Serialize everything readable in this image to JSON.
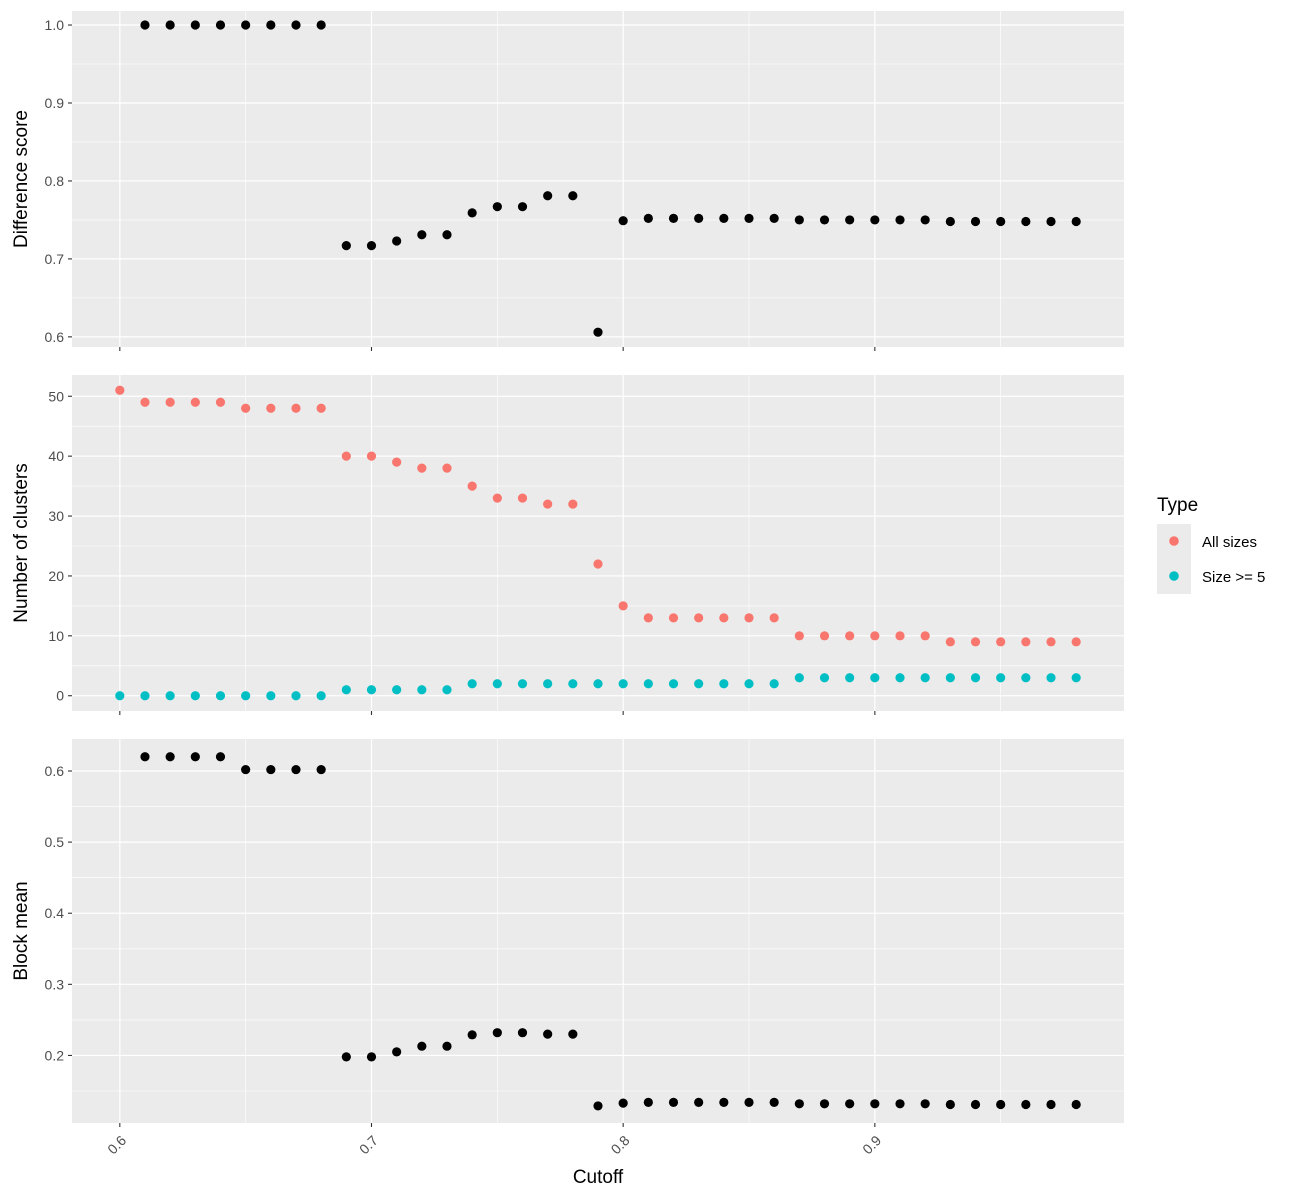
{
  "chart_data": [
    {
      "type": "scatter",
      "panel": "top",
      "ylabel": "Difference score",
      "xlim": [
        0.581,
        0.999
      ],
      "ylim": [
        0.587,
        1.018
      ],
      "y_ticks": [
        0.6,
        0.7,
        0.8,
        0.9,
        1.0
      ],
      "y_tick_labels": [
        "0.6",
        "0.7",
        "0.8",
        "0.9",
        "1.0"
      ],
      "x_ticks": [
        0.6,
        0.7,
        0.8,
        0.9
      ],
      "grid": true,
      "series": [
        {
          "color": "#000000",
          "x": [
            0.61,
            0.62,
            0.63,
            0.64,
            0.65,
            0.66,
            0.67,
            0.68,
            0.69,
            0.7,
            0.71,
            0.72,
            0.73,
            0.74,
            0.75,
            0.76,
            0.77,
            0.78,
            0.79,
            0.8,
            0.81,
            0.82,
            0.83,
            0.84,
            0.85,
            0.86,
            0.87,
            0.88,
            0.89,
            0.9,
            0.91,
            0.92,
            0.93,
            0.94,
            0.95,
            0.96,
            0.97,
            0.98
          ],
          "y": [
            1.0,
            1.0,
            1.0,
            1.0,
            1.0,
            1.0,
            1.0,
            1.0,
            0.717,
            0.717,
            0.723,
            0.731,
            0.731,
            0.759,
            0.767,
            0.767,
            0.781,
            0.781,
            0.606,
            0.749,
            0.752,
            0.752,
            0.752,
            0.752,
            0.752,
            0.752,
            0.75,
            0.75,
            0.75,
            0.75,
            0.75,
            0.75,
            0.748,
            0.748,
            0.748,
            0.748,
            0.748,
            0.748
          ]
        }
      ]
    },
    {
      "type": "scatter",
      "panel": "middle",
      "ylabel": "Number of clusters",
      "xlim": [
        0.581,
        0.999
      ],
      "ylim": [
        -2.55,
        53.55
      ],
      "y_ticks": [
        0,
        10,
        20,
        30,
        40,
        50
      ],
      "y_tick_labels": [
        "0",
        "10",
        "20",
        "30",
        "40",
        "50"
      ],
      "x_ticks": [
        0.6,
        0.7,
        0.8,
        0.9
      ],
      "grid": true,
      "legend": {
        "title": "Type",
        "placement": "right",
        "entries": [
          "All sizes",
          "Size >= 5"
        ]
      },
      "series": [
        {
          "name": "All sizes",
          "color": "#F8766D",
          "x": [
            0.6,
            0.61,
            0.62,
            0.63,
            0.64,
            0.65,
            0.66,
            0.67,
            0.68,
            0.69,
            0.7,
            0.71,
            0.72,
            0.73,
            0.74,
            0.75,
            0.76,
            0.77,
            0.78,
            0.79,
            0.8,
            0.81,
            0.82,
            0.83,
            0.84,
            0.85,
            0.86,
            0.87,
            0.88,
            0.89,
            0.9,
            0.91,
            0.92,
            0.93,
            0.94,
            0.95,
            0.96,
            0.97,
            0.98
          ],
          "y": [
            51,
            49,
            49,
            49,
            49,
            48,
            48,
            48,
            48,
            40,
            40,
            39,
            38,
            38,
            35,
            33,
            33,
            32,
            32,
            22,
            15,
            13,
            13,
            13,
            13,
            13,
            13,
            10,
            10,
            10,
            10,
            10,
            10,
            9,
            9,
            9,
            9,
            9,
            9
          ]
        },
        {
          "name": "Size >= 5",
          "color": "#00BFC4",
          "x": [
            0.6,
            0.61,
            0.62,
            0.63,
            0.64,
            0.65,
            0.66,
            0.67,
            0.68,
            0.69,
            0.7,
            0.71,
            0.72,
            0.73,
            0.74,
            0.75,
            0.76,
            0.77,
            0.78,
            0.79,
            0.8,
            0.81,
            0.82,
            0.83,
            0.84,
            0.85,
            0.86,
            0.87,
            0.88,
            0.89,
            0.9,
            0.91,
            0.92,
            0.93,
            0.94,
            0.95,
            0.96,
            0.97,
            0.98
          ],
          "y": [
            0,
            0,
            0,
            0,
            0,
            0,
            0,
            0,
            0,
            1,
            1,
            1,
            1,
            1,
            2,
            2,
            2,
            2,
            2,
            2,
            2,
            2,
            2,
            2,
            2,
            2,
            2,
            3,
            3,
            3,
            3,
            3,
            3,
            3,
            3,
            3,
            3,
            3,
            3
          ]
        }
      ]
    },
    {
      "type": "scatter",
      "panel": "bottom",
      "ylabel": "Block mean",
      "xlabel": "Cutoff",
      "xlim": [
        0.581,
        0.999
      ],
      "ylim": [
        0.105,
        0.645
      ],
      "y_ticks": [
        0.2,
        0.3,
        0.4,
        0.5,
        0.6
      ],
      "y_tick_labels": [
        "0.2",
        "0.3",
        "0.4",
        "0.5",
        "0.6"
      ],
      "x_ticks": [
        0.6,
        0.7,
        0.8,
        0.9
      ],
      "x_tick_labels": [
        "0.6",
        "0.7",
        "0.8",
        "0.9"
      ],
      "grid": true,
      "series": [
        {
          "color": "#000000",
          "x": [
            0.61,
            0.62,
            0.63,
            0.64,
            0.65,
            0.66,
            0.67,
            0.68,
            0.69,
            0.7,
            0.71,
            0.72,
            0.73,
            0.74,
            0.75,
            0.76,
            0.77,
            0.78,
            0.79,
            0.8,
            0.81,
            0.82,
            0.83,
            0.84,
            0.85,
            0.86,
            0.87,
            0.88,
            0.89,
            0.9,
            0.91,
            0.92,
            0.93,
            0.94,
            0.95,
            0.96,
            0.97,
            0.98
          ],
          "y": [
            0.62,
            0.62,
            0.62,
            0.62,
            0.602,
            0.602,
            0.602,
            0.602,
            0.198,
            0.198,
            0.205,
            0.213,
            0.213,
            0.229,
            0.232,
            0.232,
            0.23,
            0.23,
            0.129,
            0.133,
            0.134,
            0.134,
            0.134,
            0.134,
            0.134,
            0.134,
            0.132,
            0.132,
            0.132,
            0.132,
            0.132,
            0.132,
            0.131,
            0.131,
            0.131,
            0.131,
            0.131,
            0.131
          ]
        }
      ]
    }
  ]
}
